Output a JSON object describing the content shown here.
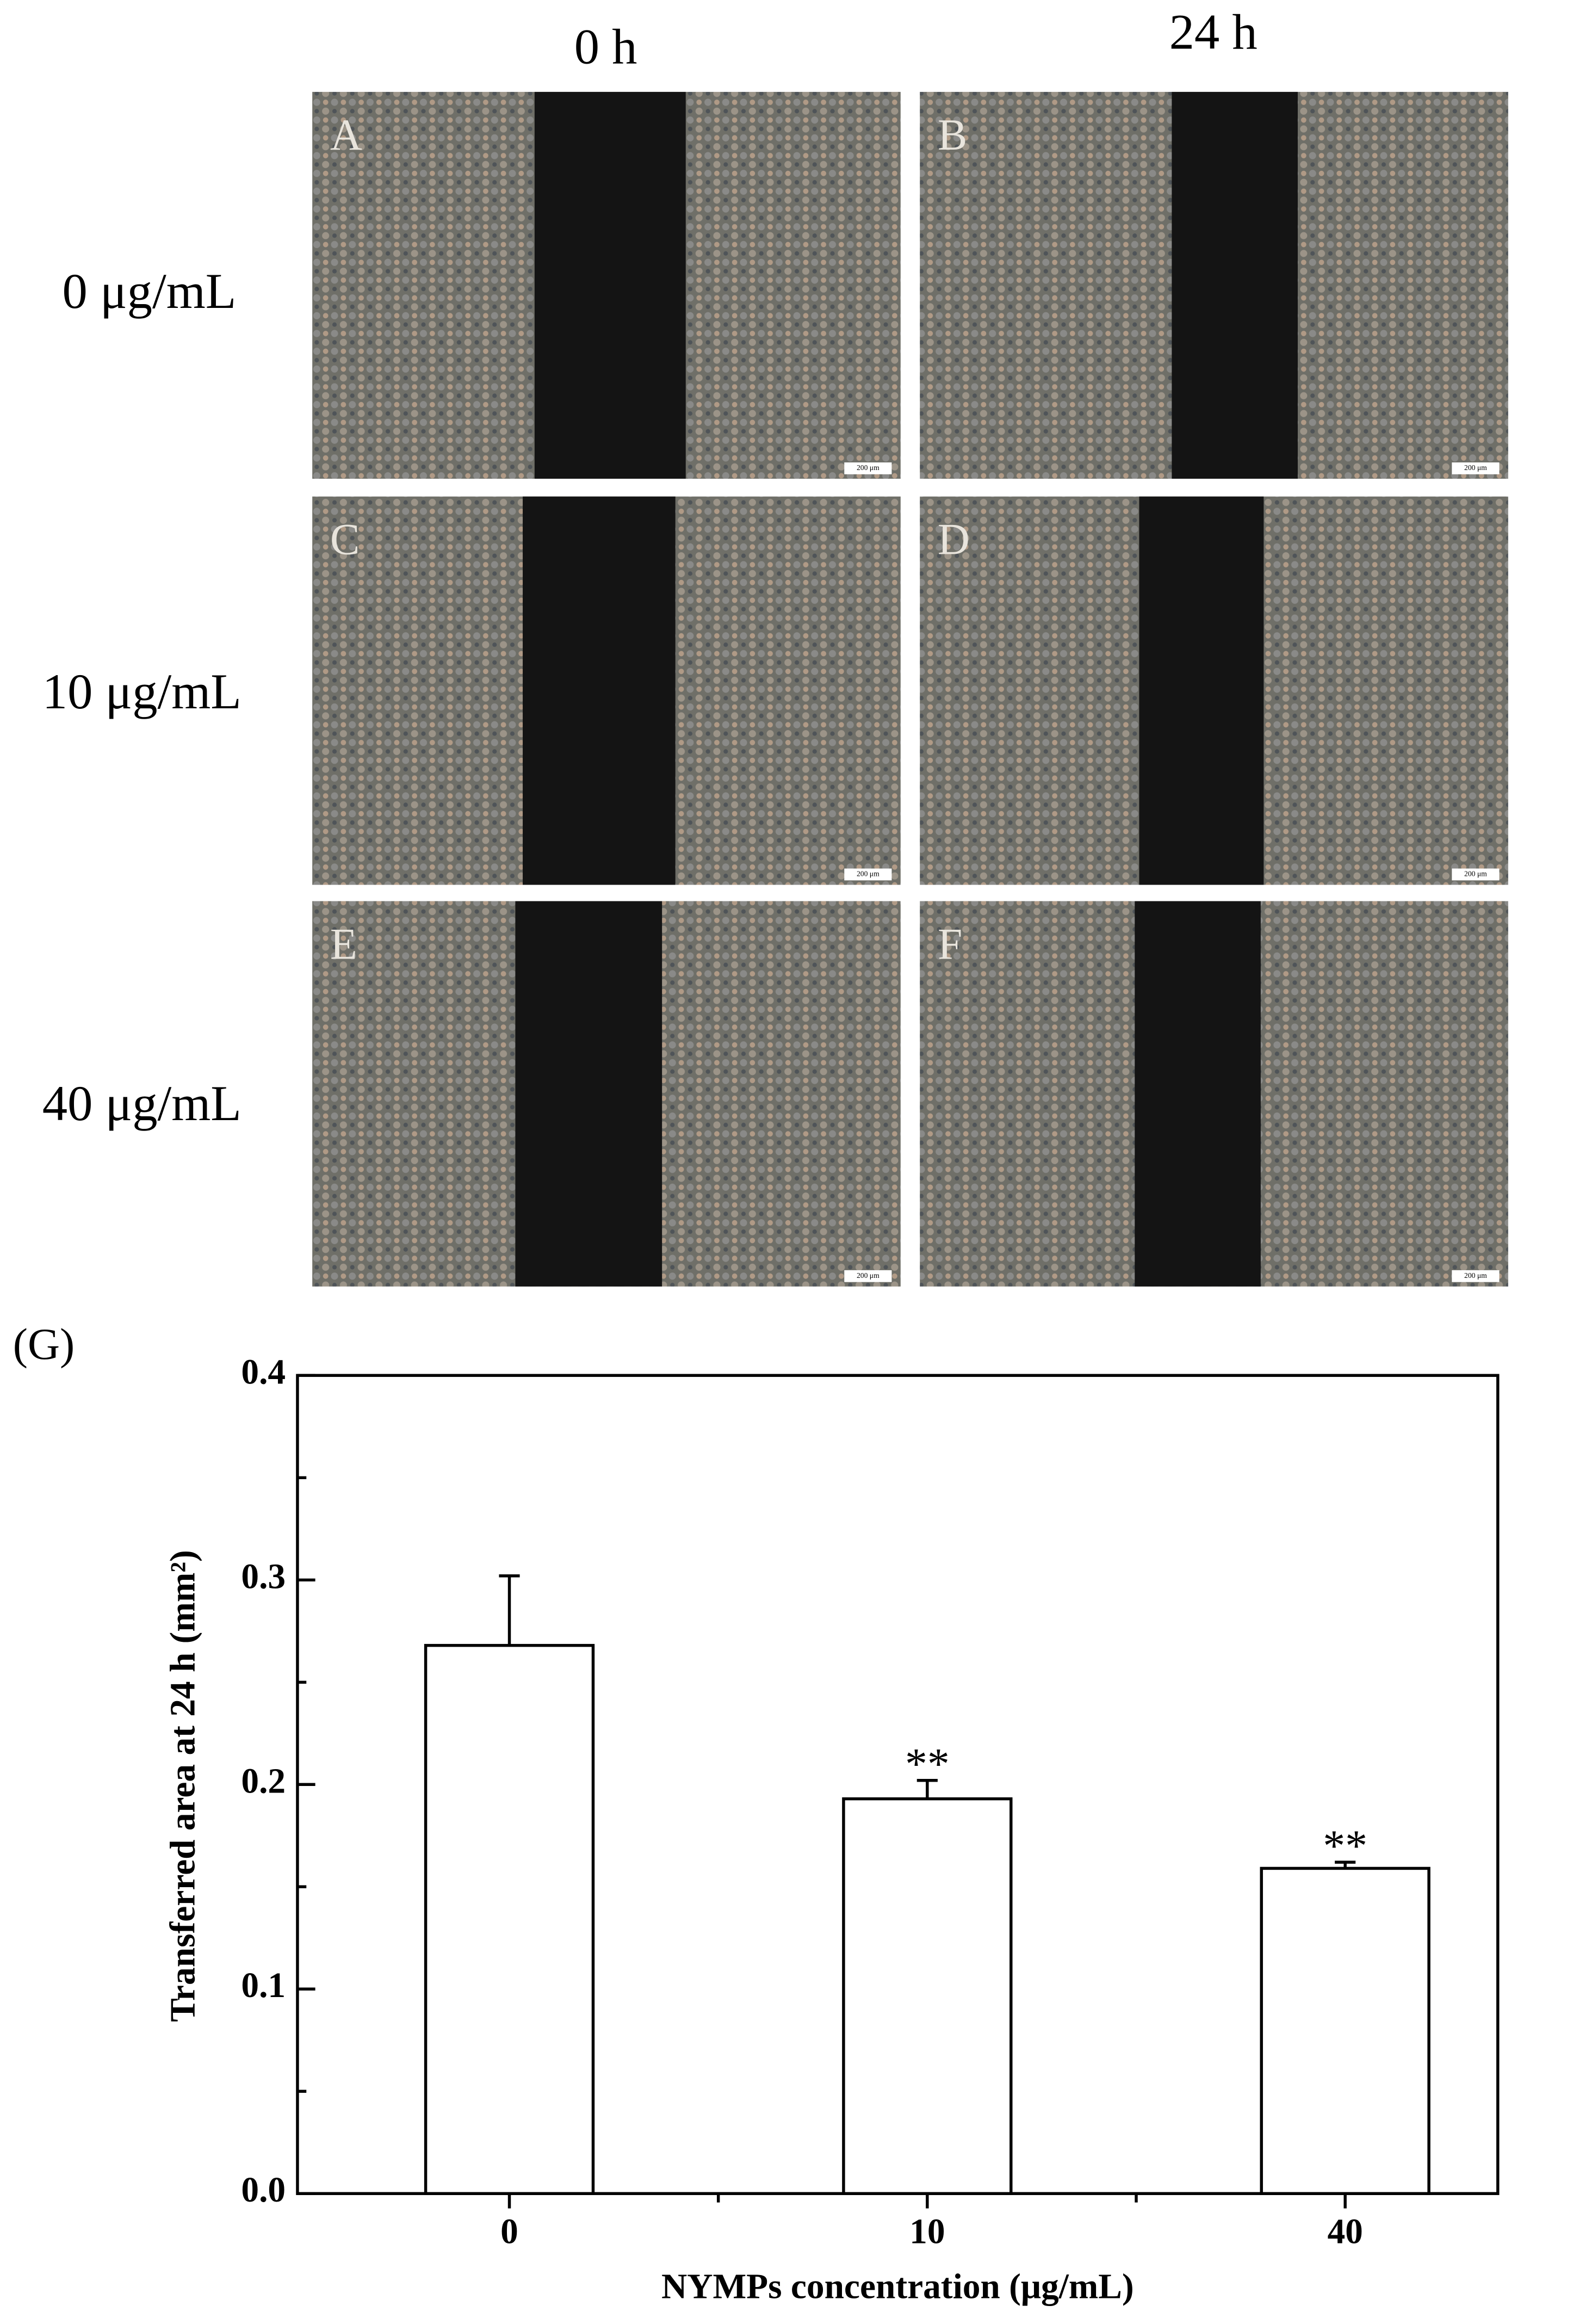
{
  "panels": {
    "column_labels": [
      "0 h",
      "24 h"
    ],
    "row_labels": [
      "0 μg/mL",
      "10 μg/mL",
      "40 μg/mL"
    ],
    "panel_labels": [
      "A",
      "B",
      "C",
      "D",
      "E",
      "F"
    ],
    "scale_bar_label": "200 μm"
  },
  "chart_data": {
    "type": "bar",
    "panel_label": "(G)",
    "y_label": "Transferred area at 24 h (mm²)",
    "x_label": "NYMPs concentration (μg/mL)",
    "categories": [
      "0",
      "10",
      "40"
    ],
    "values": [
      0.268,
      0.193,
      0.159
    ],
    "errors": [
      0.034,
      0.009,
      0.003
    ],
    "annotations": [
      null,
      "**",
      "**"
    ],
    "color": "#ffffff",
    "ylim": [
      0,
      0.4
    ],
    "yticks": [
      {
        "value": 0,
        "label": "0.0"
      },
      0.1,
      0.2,
      0.3,
      0.4
    ],
    "y_minor_ticks": [
      0.05,
      0.15,
      0.25,
      0.35
    ],
    "grid": false
  }
}
